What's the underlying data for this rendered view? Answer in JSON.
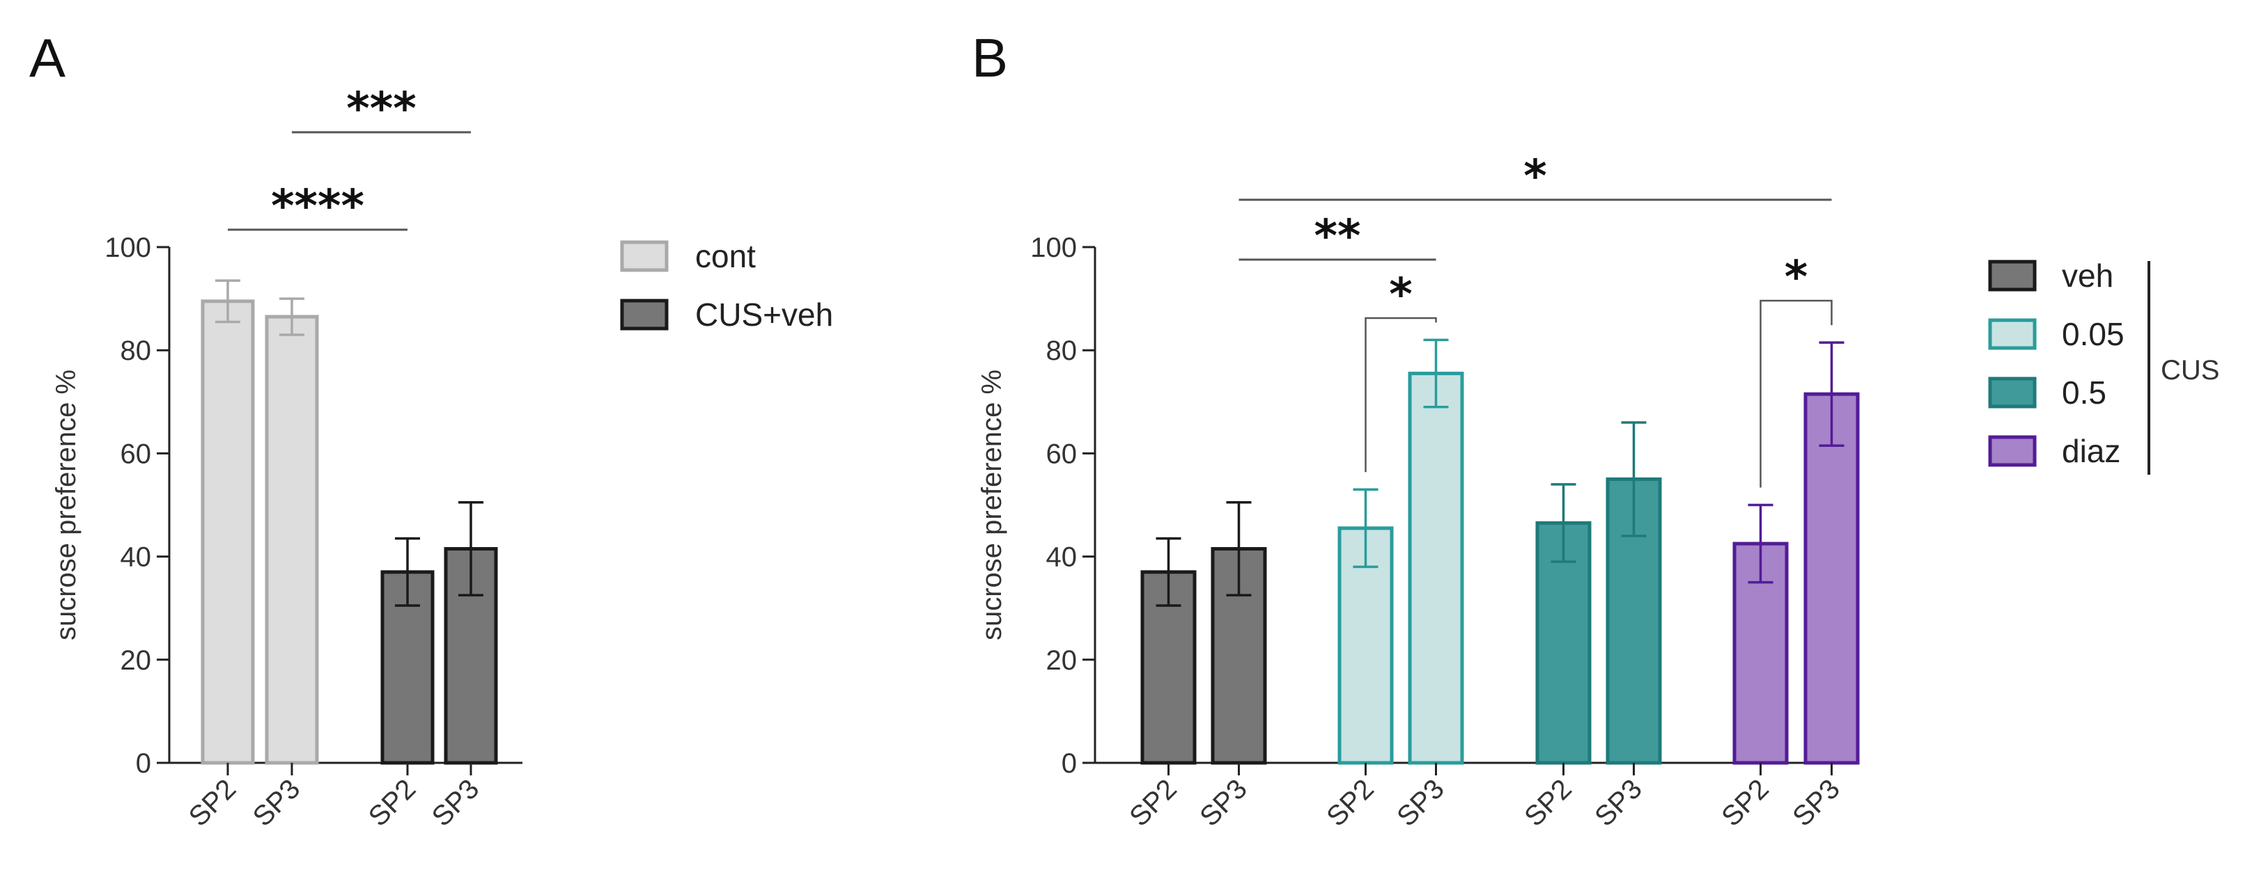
{
  "chart_data": [
    {
      "panel": "A",
      "type": "bar",
      "ylabel": "sucrose preference %",
      "ylim": [
        0,
        100
      ],
      "yticks": [
        0,
        20,
        40,
        60,
        80,
        100
      ],
      "groups": [
        {
          "name": "cont",
          "bars": [
            {
              "label": "SP2",
              "value": 89.5,
              "err": 4
            },
            {
              "label": "SP3",
              "value": 86.5,
              "err": 3.5
            }
          ]
        },
        {
          "name": "CUS+veh",
          "bars": [
            {
              "label": "SP2",
              "value": 37,
              "err": 6.5
            },
            {
              "label": "SP3",
              "value": 41.5,
              "err": 9
            }
          ]
        }
      ],
      "legend": [
        {
          "label": "cont",
          "fill": "#dddddd",
          "stroke": "#a9a9a9"
        },
        {
          "label": "CUS+veh",
          "fill": "#777777",
          "stroke": "#1a1a1a"
        }
      ],
      "significance": [
        {
          "text": "***",
          "from": [
            0,
            1
          ],
          "to": [
            1,
            1
          ]
        },
        {
          "text": "****",
          "from": [
            0,
            0
          ],
          "to": [
            1,
            0
          ]
        }
      ]
    },
    {
      "panel": "B",
      "type": "bar",
      "ylabel": "sucrose preference %",
      "ylim": [
        0,
        100
      ],
      "yticks": [
        0,
        20,
        40,
        60,
        80,
        100
      ],
      "groups": [
        {
          "name": "veh",
          "bars": [
            {
              "label": "SP2",
              "value": 37,
              "err": 6.5
            },
            {
              "label": "SP3",
              "value": 41.5,
              "err": 9
            }
          ]
        },
        {
          "name": "0.05",
          "bars": [
            {
              "label": "SP2",
              "value": 45.5,
              "err": 7.5
            },
            {
              "label": "SP3",
              "value": 75.5,
              "err": 6.5
            }
          ]
        },
        {
          "name": "0.5",
          "bars": [
            {
              "label": "SP2",
              "value": 46.5,
              "err": 7.5
            },
            {
              "label": "SP3",
              "value": 55,
              "err": 11
            }
          ]
        },
        {
          "name": "diaz",
          "bars": [
            {
              "label": "SP2",
              "value": 42.5,
              "err": 7.5
            },
            {
              "label": "SP3",
              "value": 71.5,
              "err": 10
            }
          ]
        }
      ],
      "legend": [
        {
          "label": "veh",
          "fill": "#777777",
          "stroke": "#1a1a1a"
        },
        {
          "label": "0.05",
          "fill": "#c9e3e3",
          "stroke": "#2a9c9c"
        },
        {
          "label": "0.5",
          "fill": "#419a9a",
          "stroke": "#1f7a7a"
        },
        {
          "label": "diaz",
          "fill": "#a783c9",
          "stroke": "#521c96"
        }
      ],
      "legend_bracket_label": "CUS",
      "significance": [
        {
          "text": "*",
          "from": [
            0,
            1
          ],
          "to": [
            3,
            1
          ]
        },
        {
          "text": "**",
          "from": [
            0,
            1
          ],
          "to": [
            1,
            1
          ]
        },
        {
          "text": "*",
          "from": [
            1,
            0
          ],
          "to": [
            1,
            1
          ],
          "bracket": true
        },
        {
          "text": "*",
          "from": [
            3,
            0
          ],
          "to": [
            3,
            1
          ],
          "bracket": true
        }
      ]
    }
  ],
  "panel_labels": [
    "A",
    "B"
  ]
}
